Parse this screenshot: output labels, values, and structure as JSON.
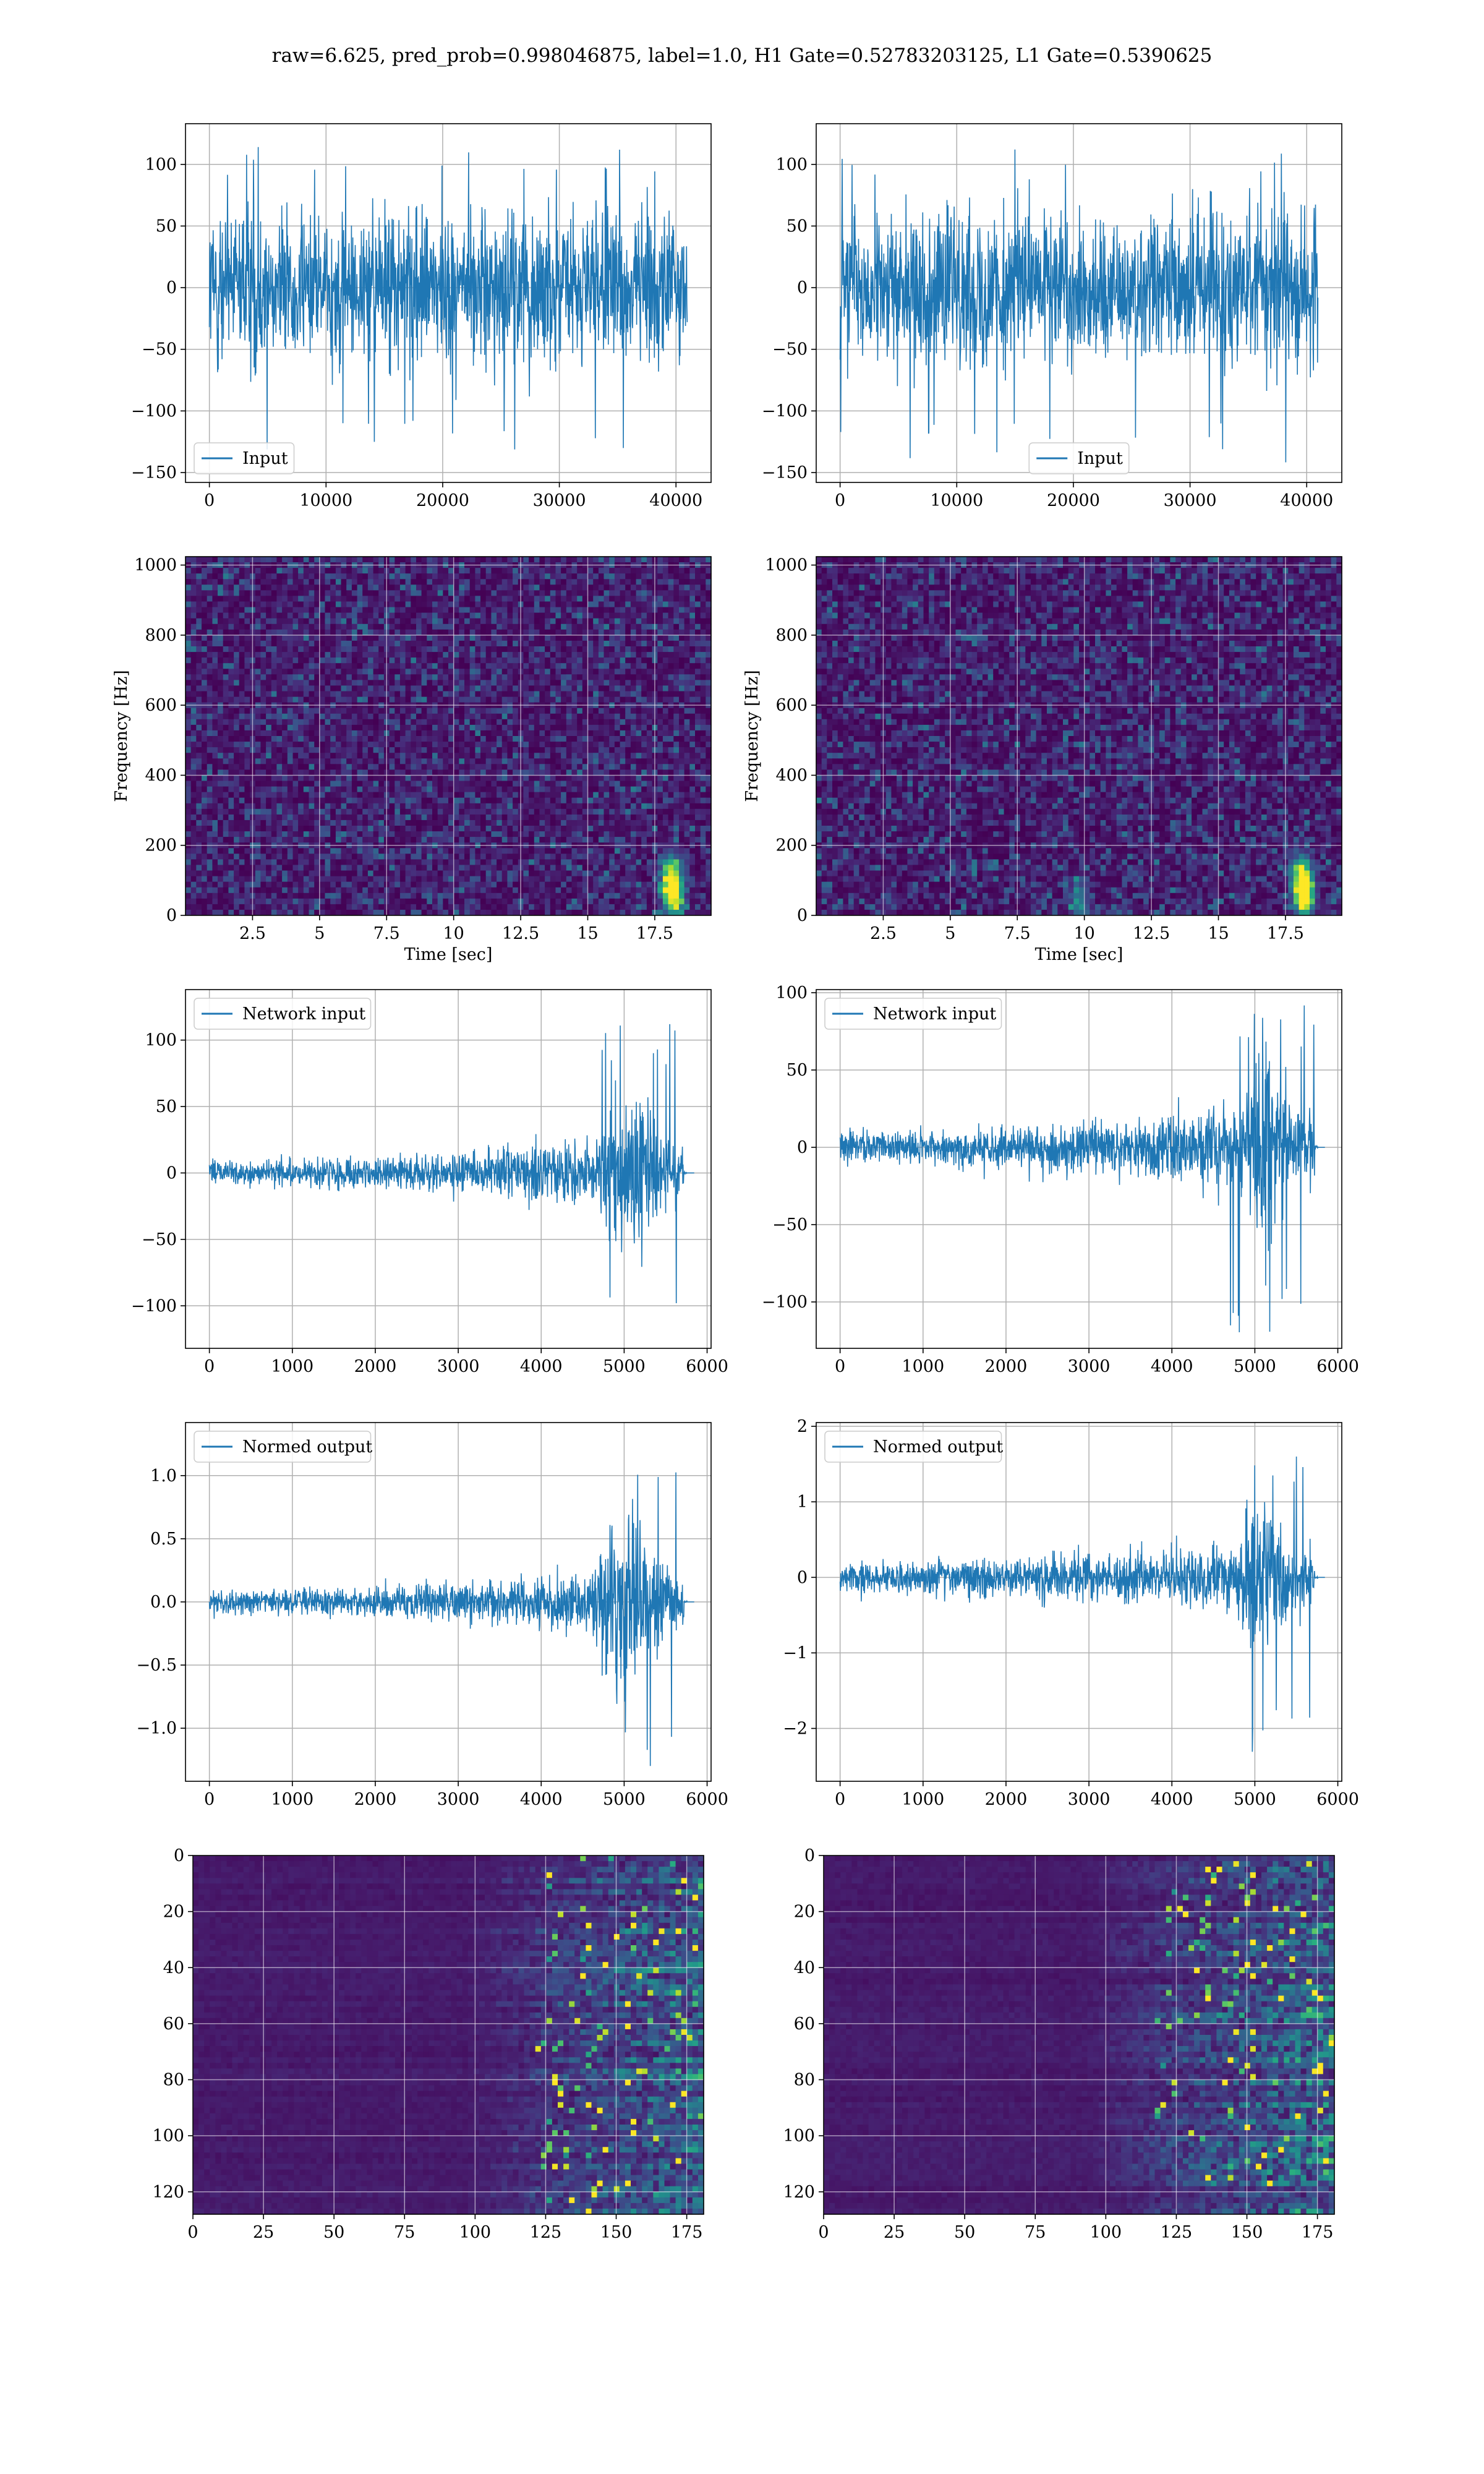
{
  "figure_title": "raw=6.625, pred_prob=0.998046875, label=1.0, H1 Gate=0.52783203125, L1 Gate=0.5390625",
  "colors": {
    "line": "#1f77b4",
    "grid": "#b0b0b0",
    "axes": "#000000",
    "viridis": [
      "#440154",
      "#472c7a",
      "#3b528b",
      "#2c728e",
      "#21918c",
      "#28ae80",
      "#5ec962",
      "#addc30",
      "#fde725"
    ]
  },
  "chart_data": [
    {
      "id": "input-h1",
      "type": "line",
      "series": [
        {
          "name": "Input",
          "style": "dense-noise",
          "x_range": [
            0,
            40960
          ],
          "envelope": [
            -100,
            100
          ],
          "spike_min": -140,
          "spike_max": 120
        }
      ],
      "legend": "lower-left",
      "xlim": [
        -2048,
        43008
      ],
      "ylim": [
        -158,
        133
      ],
      "xticks": [
        0,
        10000,
        20000,
        30000,
        40000
      ],
      "yticks": [
        -150,
        -100,
        -50,
        0,
        50,
        100
      ],
      "grid": true
    },
    {
      "id": "input-l1",
      "type": "line",
      "series": [
        {
          "name": "Input",
          "style": "dense-noise",
          "x_range": [
            0,
            40960
          ],
          "envelope": [
            -100,
            100
          ],
          "spike_min": -145,
          "spike_max": 120
        }
      ],
      "legend": "lower-center",
      "xlim": [
        -2048,
        43008
      ],
      "ylim": [
        -158,
        133
      ],
      "xticks": [
        0,
        10000,
        20000,
        30000,
        40000
      ],
      "yticks": [
        -150,
        -100,
        -50,
        0,
        50,
        100
      ],
      "grid": true
    },
    {
      "id": "spectrogram-h1",
      "type": "heatmap",
      "xlabel": "Time [sec]",
      "ylabel": "Frequency [Hz]",
      "xlim": [
        0,
        19.6
      ],
      "ylim": [
        0,
        1024
      ],
      "xticks": [
        2.5,
        5.0,
        7.5,
        10.0,
        12.5,
        15.0,
        17.5
      ],
      "yticks": [
        0,
        200,
        400,
        600,
        800,
        1000
      ],
      "hotspots": [
        {
          "t": 18.2,
          "f": 60,
          "intensity": 1.0
        },
        {
          "t": 18.1,
          "f": 120,
          "intensity": 0.6
        }
      ],
      "grid": true
    },
    {
      "id": "spectrogram-l1",
      "type": "heatmap",
      "xlabel": "Time [sec]",
      "ylabel": "Frequency [Hz]",
      "xlim": [
        0,
        19.6
      ],
      "ylim": [
        0,
        1024
      ],
      "xticks": [
        2.5,
        5.0,
        7.5,
        10.0,
        12.5,
        15.0,
        17.5
      ],
      "yticks": [
        0,
        200,
        400,
        600,
        800,
        1000
      ],
      "hotspots": [
        {
          "t": 18.2,
          "f": 60,
          "intensity": 1.0
        },
        {
          "t": 18.1,
          "f": 110,
          "intensity": 0.7
        },
        {
          "t": 9.8,
          "f": 40,
          "intensity": 0.4
        }
      ],
      "grid": true
    },
    {
      "id": "network-input-h1",
      "type": "line",
      "series": [
        {
          "name": "Network input",
          "style": "chirp",
          "x_range": [
            0,
            5760
          ],
          "base_amp": 12,
          "ramp_end_amp": 30,
          "burst_start": 4600,
          "burst_end": 5720,
          "burst_max": 115,
          "burst_min": -115
        }
      ],
      "legend": "upper-left",
      "xlim": [
        -288,
        6048
      ],
      "ylim": [
        -132,
        138
      ],
      "xticks": [
        0,
        1000,
        2000,
        3000,
        4000,
        5000,
        6000
      ],
      "yticks": [
        -100,
        -50,
        0,
        50,
        100
      ],
      "grid": true
    },
    {
      "id": "network-input-l1",
      "type": "line",
      "series": [
        {
          "name": "Network input",
          "style": "chirp",
          "x_range": [
            0,
            5760
          ],
          "base_amp": 14,
          "ramp_end_amp": 32,
          "burst_start": 4700,
          "burst_end": 5720,
          "burst_max": 92,
          "burst_min": -120
        }
      ],
      "legend": "upper-left",
      "xlim": [
        -288,
        6048
      ],
      "ylim": [
        -130,
        102
      ],
      "xticks": [
        0,
        1000,
        2000,
        3000,
        4000,
        5000,
        6000
      ],
      "yticks": [
        -100,
        -50,
        0,
        50,
        100
      ],
      "grid": true
    },
    {
      "id": "normed-output-h1",
      "type": "line",
      "series": [
        {
          "name": "Normed output",
          "style": "chirp",
          "x_range": [
            0,
            5760
          ],
          "base_amp": 0.12,
          "ramp_end_amp": 0.3,
          "burst_start": 4600,
          "burst_end": 5720,
          "burst_max": 1.32,
          "burst_min": -1.3
        }
      ],
      "legend": "upper-left",
      "xlim": [
        -288,
        6048
      ],
      "ylim": [
        -1.42,
        1.42
      ],
      "xticks": [
        0,
        1000,
        2000,
        3000,
        4000,
        5000,
        6000
      ],
      "yticks": [
        -1.0,
        -0.5,
        0.0,
        0.5,
        1.0
      ],
      "ytick_labels": [
        "−1.0",
        "−0.5",
        "0.0",
        "0.5",
        "1.0"
      ],
      "grid": true
    },
    {
      "id": "normed-output-l1",
      "type": "line",
      "series": [
        {
          "name": "Normed output",
          "style": "chirp",
          "x_range": [
            0,
            5760
          ],
          "base_amp": 0.25,
          "ramp_end_amp": 0.6,
          "burst_start": 4700,
          "burst_end": 5720,
          "burst_max": 1.8,
          "burst_min": -2.35
        }
      ],
      "legend": "upper-left",
      "xlim": [
        -288,
        6048
      ],
      "ylim": [
        -2.7,
        2.05
      ],
      "xticks": [
        0,
        1000,
        2000,
        3000,
        4000,
        5000,
        6000
      ],
      "yticks": [
        -2,
        -1,
        0,
        1,
        2
      ],
      "grid": true
    },
    {
      "id": "feature-map-h1",
      "type": "heatmap",
      "xlim": [
        0,
        181
      ],
      "ylim": [
        128,
        0
      ],
      "xticks": [
        0,
        25,
        50,
        75,
        100,
        125,
        150,
        175
      ],
      "yticks": [
        0,
        20,
        40,
        60,
        80,
        100,
        120
      ],
      "activation_onset": 122,
      "grid": true
    },
    {
      "id": "feature-map-l1",
      "type": "heatmap",
      "xlim": [
        0,
        181
      ],
      "ylim": [
        128,
        0
      ],
      "xticks": [
        0,
        25,
        50,
        75,
        100,
        125,
        150,
        175
      ],
      "yticks": [
        0,
        20,
        40,
        60,
        80,
        100,
        120
      ],
      "activation_onset": 118,
      "grid": true
    }
  ]
}
